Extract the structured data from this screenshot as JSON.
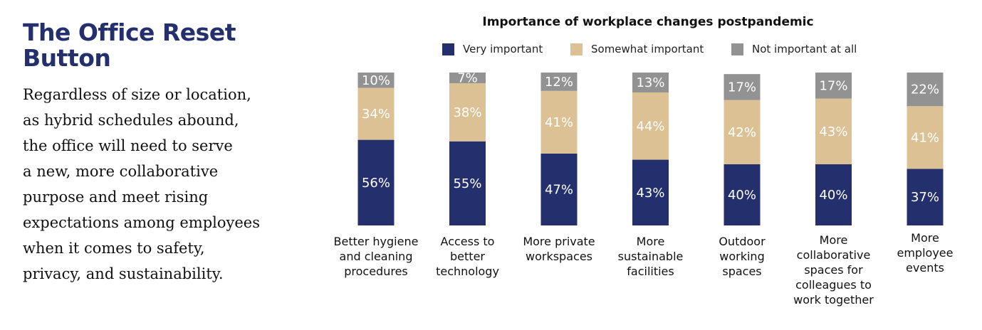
{
  "headline": "The Office Reset Button",
  "body": "Regardless of size or location,\nas hybrid schedules abound,\nthe office will need to serve\na new, more collaborative\npurpose and meet rising\nexpectations among employees\nwhen it comes to safety,\nprivacy, and sustainability.",
  "colors": {
    "very_important": "#24306e",
    "somewhat_important": "#dcc195",
    "not_important": "#929292",
    "headline": "#24306e"
  },
  "chart_data": {
    "type": "bar",
    "stacked": true,
    "title": "Importance of workplace changes postpandemic",
    "categories": [
      "Better hygiene\nand cleaning\nprocedures",
      "Access to\nbetter\ntechnology",
      "More private\nworkspaces",
      "More\nsustainable\nfacilities",
      "Outdoor\nworking\nspaces",
      "More\ncollaborative\nspaces for\ncolleagues to\nwork together",
      "More\nemployee\nevents"
    ],
    "series": [
      {
        "name": "Very important",
        "values": [
          56,
          55,
          47,
          43,
          40,
          40,
          37
        ],
        "labels": [
          "56%",
          "55%",
          "47%",
          "43%",
          "40%",
          "40%",
          "37%"
        ]
      },
      {
        "name": "Somewhat important",
        "values": [
          34,
          38,
          41,
          44,
          42,
          43,
          41
        ],
        "labels": [
          "34%",
          "38%",
          "41%",
          "44%",
          "42%",
          "43%",
          "41%"
        ]
      },
      {
        "name": "Not important at all",
        "values": [
          10,
          7,
          12,
          13,
          17,
          17,
          22
        ],
        "labels": [
          "10%",
          "7%",
          "12%",
          "13%",
          "17%",
          "17%",
          "22%"
        ]
      }
    ],
    "legend_position": "top",
    "ylim": [
      0,
      100
    ],
    "grid": false
  }
}
